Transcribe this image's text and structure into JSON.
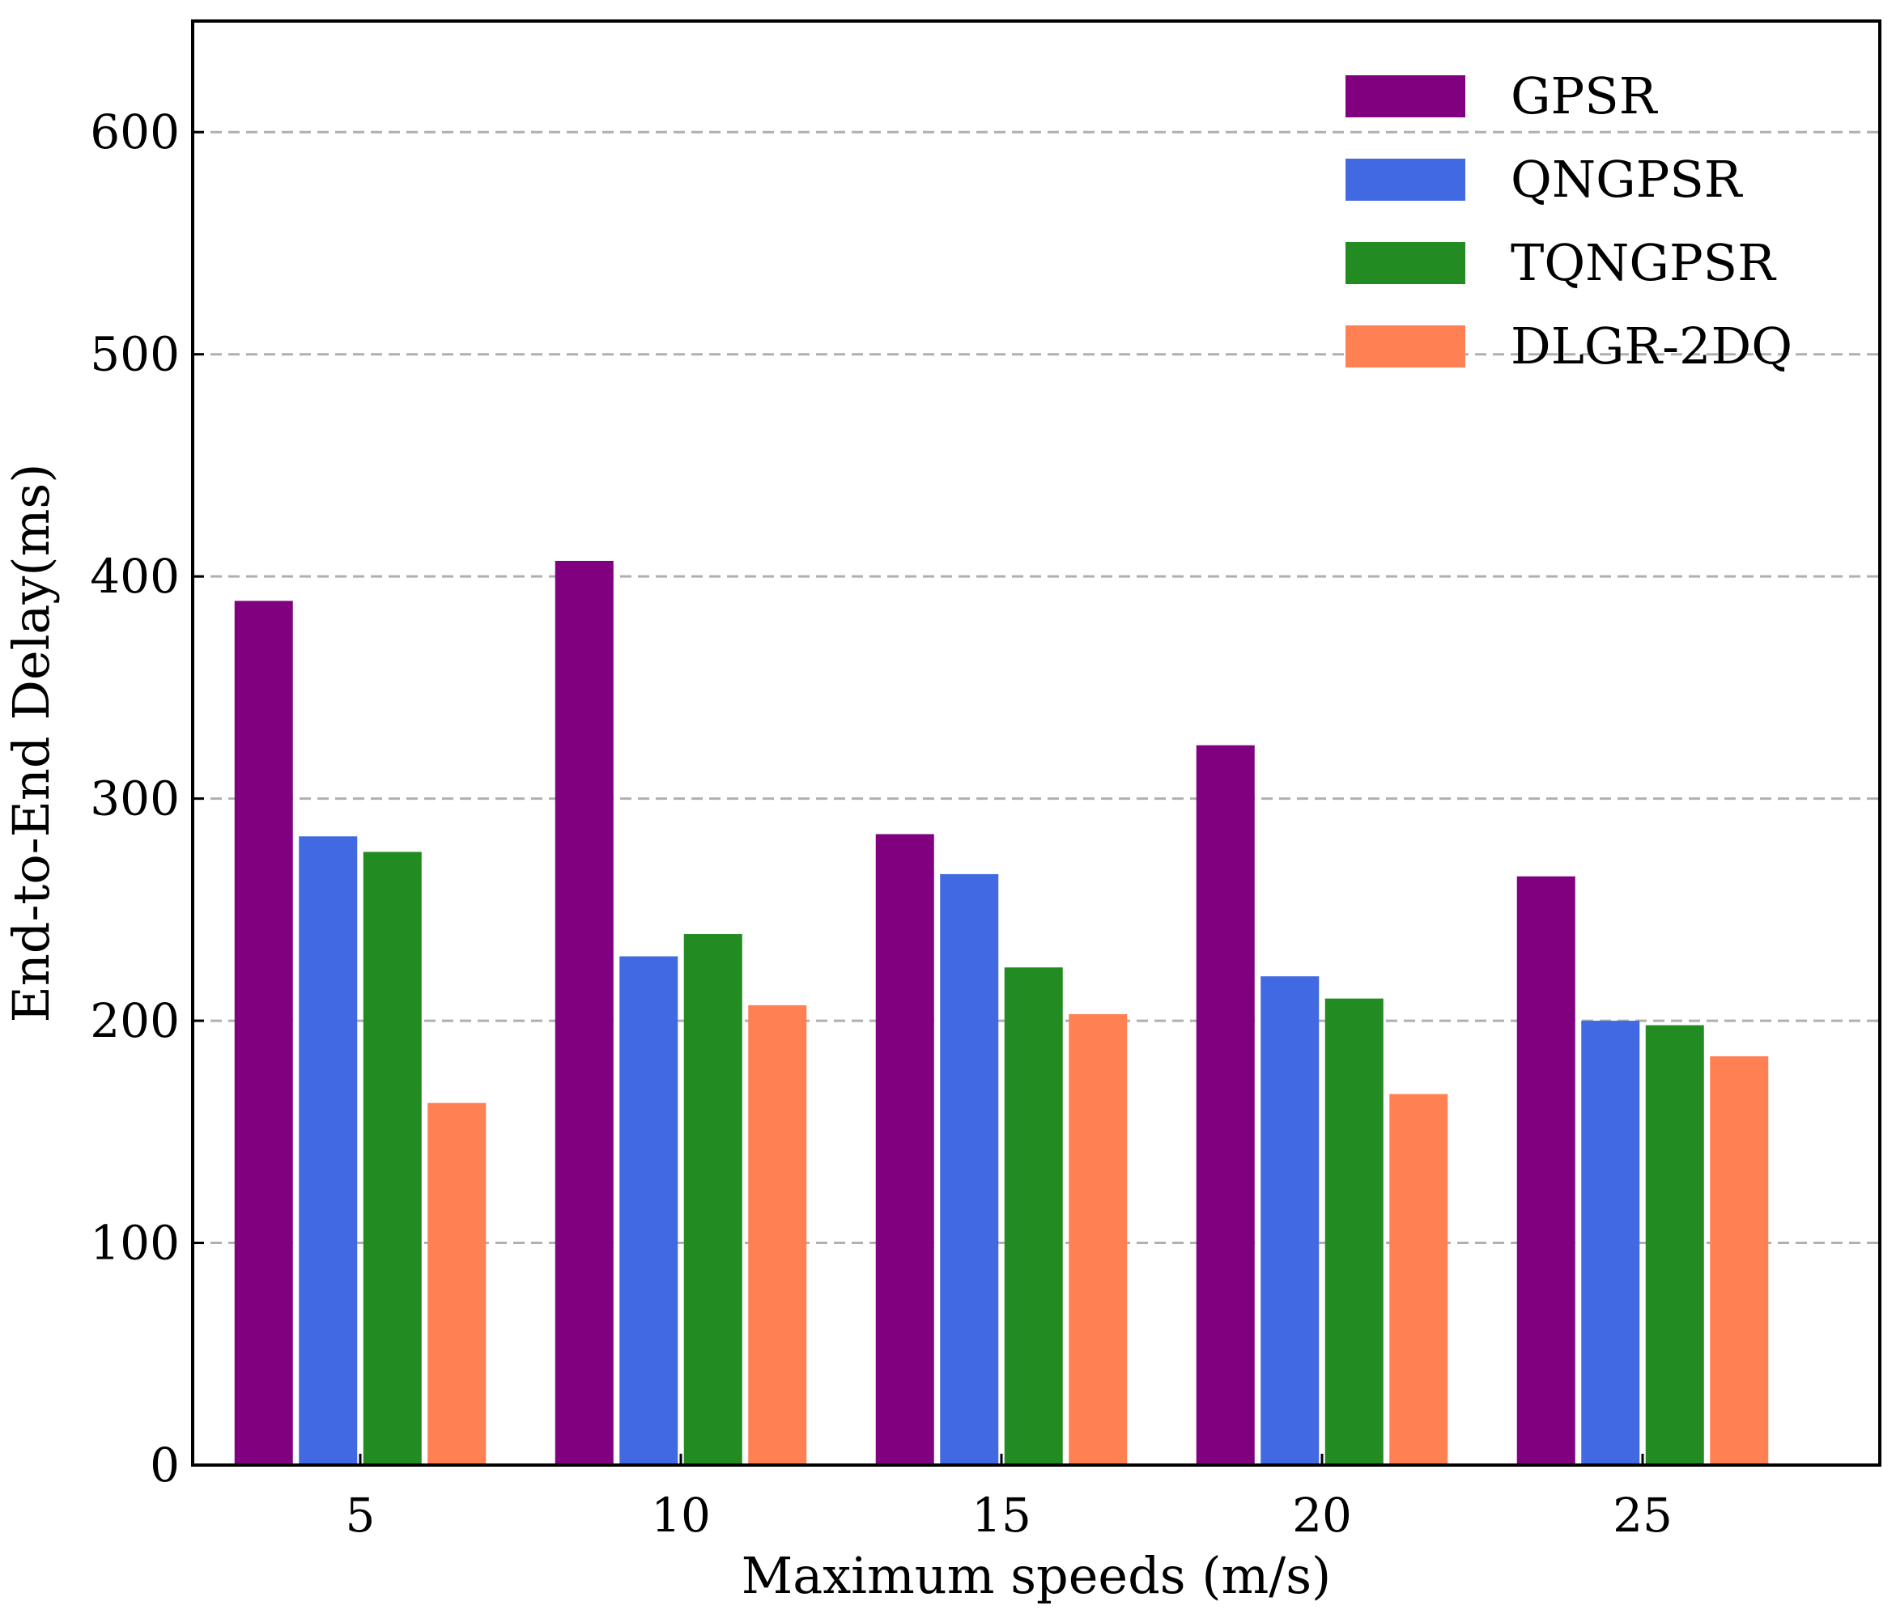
{
  "chart_data": {
    "type": "bar",
    "title": "",
    "xlabel": "Maximum speeds (m/s)",
    "ylabel": "End-to-End Delay(ms)",
    "categories": [
      "5",
      "10",
      "15",
      "20",
      "25"
    ],
    "ylim": [
      0,
      650
    ],
    "yticks": [
      "0",
      "100",
      "200",
      "300",
      "400",
      "500",
      "600"
    ],
    "grid": "y, dashed",
    "legend_position": "top-right",
    "series": [
      {
        "name": "GPSR",
        "color": "#800080",
        "values": [
          389,
          407,
          284,
          324,
          265
        ]
      },
      {
        "name": "QNGPSR",
        "color": "#4169E1",
        "values": [
          283,
          229,
          266,
          220,
          200
        ]
      },
      {
        "name": "TQNGPSR",
        "color": "#228B22",
        "values": [
          276,
          239,
          224,
          210,
          198
        ]
      },
      {
        "name": "DLGR-2DQ",
        "color": "#FF8052",
        "values": [
          163,
          207,
          203,
          167,
          184
        ]
      }
    ]
  }
}
